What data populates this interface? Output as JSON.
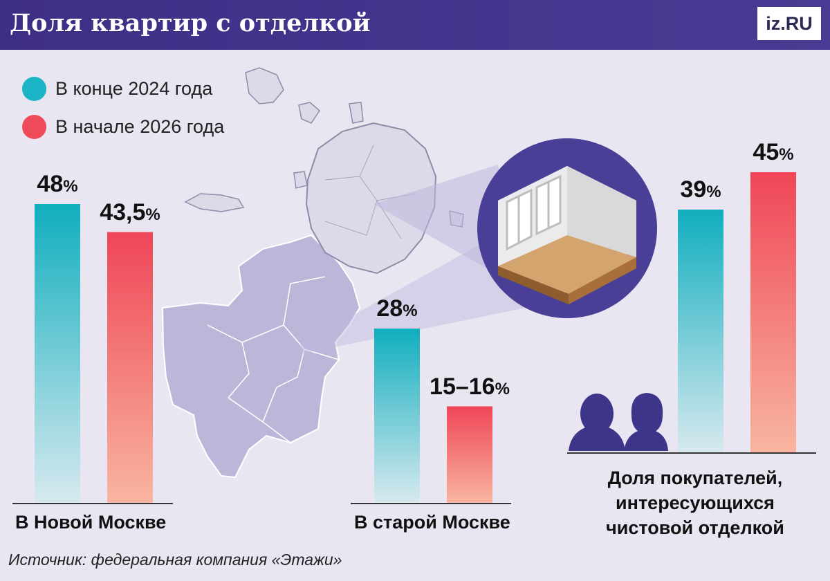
{
  "title": "Доля квартир с отделкой",
  "logo": "iz.RU",
  "legend": [
    {
      "label": "В конце 2024 года",
      "color": "#1bb3c6"
    },
    {
      "label": "В начале 2026 года",
      "color": "#ee4a5a"
    }
  ],
  "chart_data": {
    "type": "bar",
    "title": "Доля квартир с отделкой",
    "categories": [
      "В Новой Москве",
      "В старой Москве",
      "Доля покупателей, интересующихся чистовой отделкой"
    ],
    "series": [
      {
        "name": "В конце 2024 года",
        "values": [
          48,
          28,
          39
        ],
        "labels": [
          "48",
          "28",
          "39"
        ]
      },
      {
        "name": "В начале 2026 года",
        "values": [
          43.5,
          15.5,
          45
        ],
        "labels": [
          "43,5",
          "15–16",
          "45"
        ]
      }
    ],
    "unit": "%"
  },
  "groups": {
    "new_moscow": "В Новой Москве",
    "old_moscow": "В старой Москве",
    "buyers_line1": "Доля покупателей,",
    "buyers_line2": "интересующихся",
    "buyers_line3": "чистовой отделкой"
  },
  "source": "Источник: федеральная компания «Этажи»",
  "icons": [
    "moscow-map-icon",
    "room-interior-icon",
    "buyers-people-icon"
  ]
}
